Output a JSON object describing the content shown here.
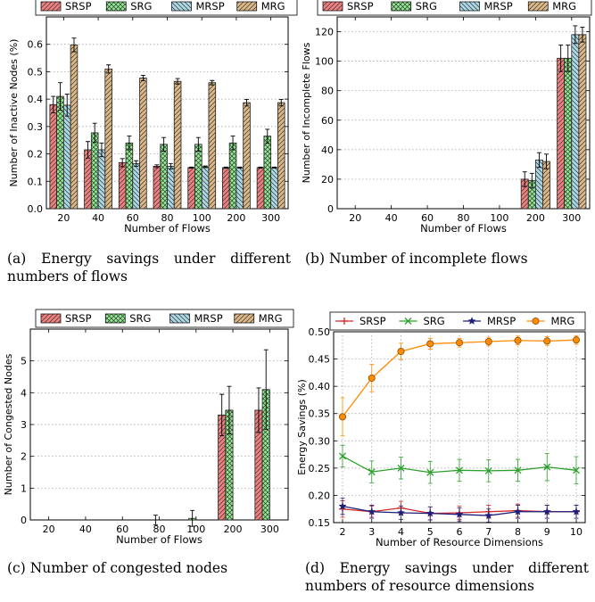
{
  "chart_data": [
    {
      "type": "bar",
      "xlabel": "Number of Flows",
      "ylabel": "Number of Inactive Nodes (%)",
      "caption": "(a) Energy savings under different numbers of flows",
      "categories": [
        "20",
        "40",
        "60",
        "80",
        "100",
        "200",
        "300"
      ],
      "ylim": [
        0,
        0.7
      ],
      "yticks": [
        "0.0",
        "0.1",
        "0.2",
        "0.3",
        "0.4",
        "0.5",
        "0.6"
      ],
      "ytick_values": [
        0,
        0.1,
        0.2,
        0.3,
        0.4,
        0.5,
        0.6
      ],
      "grid": true,
      "legend": "top",
      "series": [
        {
          "name": "SRSP",
          "values": [
            0.38,
            0.215,
            0.168,
            0.155,
            0.15,
            0.15,
            0.15
          ],
          "errors": [
            0.03,
            0.03,
            0.015,
            0.005,
            0.002,
            0.002,
            0.002
          ]
        },
        {
          "name": "SRG",
          "values": [
            0.41,
            0.277,
            0.24,
            0.235,
            0.235,
            0.24,
            0.265
          ],
          "errors": [
            0.05,
            0.035,
            0.025,
            0.025,
            0.025,
            0.025,
            0.025
          ]
        },
        {
          "name": "MRSP",
          "values": [
            0.378,
            0.215,
            0.165,
            0.155,
            0.153,
            0.15,
            0.15
          ],
          "errors": [
            0.04,
            0.025,
            0.01,
            0.01,
            0.003,
            0.002,
            0.002
          ]
        },
        {
          "name": "MRG",
          "values": [
            0.598,
            0.51,
            0.477,
            0.465,
            0.46,
            0.387,
            0.387
          ],
          "errors": [
            0.025,
            0.015,
            0.01,
            0.01,
            0.008,
            0.012,
            0.012
          ]
        }
      ]
    },
    {
      "type": "bar",
      "xlabel": "Number of Flows",
      "ylabel": "Number of Incomplete Flows",
      "caption": "(b) Number of incomplete flows",
      "categories": [
        "20",
        "40",
        "60",
        "80",
        "100",
        "200",
        "300"
      ],
      "ylim": [
        0,
        130
      ],
      "yticks": [
        "0",
        "20",
        "40",
        "60",
        "80",
        "100",
        "120"
      ],
      "ytick_values": [
        0,
        20,
        40,
        60,
        80,
        100,
        120
      ],
      "grid": true,
      "legend": "top",
      "series": [
        {
          "name": "SRSP",
          "values": [
            0,
            0,
            0,
            0,
            0,
            20,
            102
          ],
          "errors": [
            0,
            0,
            0,
            0,
            0,
            5,
            9
          ]
        },
        {
          "name": "SRG",
          "values": [
            0,
            0,
            0,
            0,
            0,
            19,
            102
          ],
          "errors": [
            0,
            0,
            0,
            0,
            0,
            5,
            9
          ]
        },
        {
          "name": "MRSP",
          "values": [
            0,
            0,
            0,
            0,
            0,
            33,
            118
          ],
          "errors": [
            0,
            0,
            0,
            0,
            0,
            5,
            6
          ]
        },
        {
          "name": "MRG",
          "values": [
            0,
            0,
            0,
            0,
            0,
            32,
            118
          ],
          "errors": [
            0,
            0,
            0,
            0,
            0,
            5,
            5
          ]
        }
      ]
    },
    {
      "type": "bar",
      "xlabel": "Number of Flows",
      "ylabel": "Number of Congested Nodes",
      "caption": "(c) Number of congested nodes",
      "categories": [
        "20",
        "40",
        "60",
        "80",
        "100",
        "200",
        "300"
      ],
      "ylim": [
        0,
        6
      ],
      "yticks": [
        "0",
        "1",
        "2",
        "3",
        "4",
        "5"
      ],
      "ytick_values": [
        0,
        1,
        2,
        3,
        4,
        5
      ],
      "grid": true,
      "legend": "top",
      "series": [
        {
          "name": "SRSP",
          "values": [
            0,
            0,
            0,
            0,
            0,
            3.3,
            3.45
          ],
          "errors": [
            0,
            0,
            0,
            0,
            0,
            0.65,
            0.7
          ]
        },
        {
          "name": "SRG",
          "values": [
            0,
            0,
            0,
            0,
            0.05,
            3.45,
            4.1
          ],
          "errors": [
            0,
            0,
            0,
            0.15,
            0.25,
            0.75,
            1.25
          ]
        },
        {
          "name": "MRSP",
          "values": [
            0,
            0,
            0,
            0,
            0,
            0,
            0
          ],
          "errors": [
            0,
            0,
            0,
            0,
            0,
            0,
            0
          ]
        },
        {
          "name": "MRG",
          "values": [
            0,
            0,
            0,
            0,
            0,
            0,
            0
          ],
          "errors": [
            0,
            0,
            0,
            0,
            0,
            0,
            0
          ]
        }
      ]
    },
    {
      "type": "line",
      "xlabel": "Number of Resource Dimensions",
      "ylabel": "Energy Savings (%)",
      "caption": "(d) Energy savings under different numbers of resource dimensions",
      "x": [
        2,
        3,
        4,
        5,
        6,
        7,
        8,
        9,
        10
      ],
      "xlim": [
        2,
        10
      ],
      "ylim": [
        0.15,
        0.5
      ],
      "yticks": [
        "0.15",
        "0.20",
        "0.25",
        "0.30",
        "0.35",
        "0.40",
        "0.45",
        "0.50"
      ],
      "ytick_values": [
        0.15,
        0.2,
        0.25,
        0.3,
        0.35,
        0.4,
        0.45,
        0.5
      ],
      "grid": true,
      "legend": "top",
      "series": [
        {
          "name": "SRSP",
          "color": "#d62728",
          "marker": "plus",
          "values": [
            0.175,
            0.17,
            0.177,
            0.167,
            0.168,
            0.17,
            0.172,
            0.17,
            0.17
          ],
          "errors": [
            0.015,
            0.01,
            0.012,
            0.012,
            0.012,
            0.012,
            0.012,
            0.012,
            0.012
          ]
        },
        {
          "name": "SRG",
          "color": "#2ca02c",
          "marker": "x",
          "values": [
            0.272,
            0.243,
            0.25,
            0.242,
            0.246,
            0.245,
            0.246,
            0.252,
            0.246
          ],
          "errors": [
            0.02,
            0.02,
            0.02,
            0.02,
            0.02,
            0.02,
            0.02,
            0.025,
            0.025
          ]
        },
        {
          "name": "MRSP",
          "color": "#1f1f7a",
          "marker": "star",
          "values": [
            0.18,
            0.17,
            0.168,
            0.167,
            0.165,
            0.163,
            0.17,
            0.17,
            0.17
          ],
          "errors": [
            0.015,
            0.012,
            0.012,
            0.012,
            0.012,
            0.012,
            0.012,
            0.012,
            0.012
          ]
        },
        {
          "name": "MRG",
          "color": "#ff8c00",
          "marker": "circle",
          "values": [
            0.344,
            0.415,
            0.464,
            0.478,
            0.48,
            0.482,
            0.484,
            0.483,
            0.485
          ],
          "errors": [
            0.035,
            0.025,
            0.015,
            0.01,
            0.008,
            0.008,
            0.008,
            0.008,
            0.008
          ]
        }
      ]
    }
  ]
}
